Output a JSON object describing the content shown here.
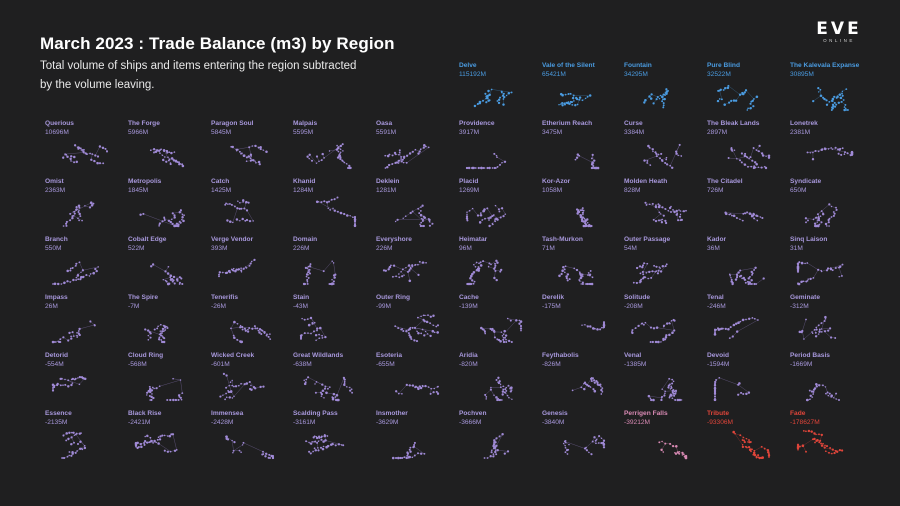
{
  "header": {
    "title": "March 2023 : Trade Balance (m3) by Region",
    "subtitle": "Total volume of ships and items entering the region subtracted by the volume leaving."
  },
  "logo": {
    "main": "EVE",
    "sub": "ONLINE"
  },
  "colors": {
    "background": "#1f1f20",
    "positive_high": "#4a9be0",
    "neutral": "#a08ad6",
    "negative_mid": "#d98ab4",
    "negative_high": "#e0453a",
    "label_neutral": "#a898dc"
  },
  "chart_data": {
    "type": "small-multiples",
    "title": "March 2023 : Trade Balance (m3) by Region",
    "unit": "m3",
    "regions": [
      {
        "name": "Delve",
        "label": "115192M",
        "value": 115192
      },
      {
        "name": "Vale of the Silent",
        "label": "65421M",
        "value": 65421
      },
      {
        "name": "Fountain",
        "label": "34295M",
        "value": 34295
      },
      {
        "name": "Pure Blind",
        "label": "32522M",
        "value": 32522
      },
      {
        "name": "The Kalevala Expanse",
        "label": "30895M",
        "value": 30895
      },
      {
        "name": "Querious",
        "label": "10696M",
        "value": 10696
      },
      {
        "name": "The Forge",
        "label": "5966M",
        "value": 5966
      },
      {
        "name": "Paragon Soul",
        "label": "5845M",
        "value": 5845
      },
      {
        "name": "Malpais",
        "label": "5595M",
        "value": 5595
      },
      {
        "name": "Oasa",
        "label": "5591M",
        "value": 5591
      },
      {
        "name": "Providence",
        "label": "3917M",
        "value": 3917
      },
      {
        "name": "Etherium Reach",
        "label": "3475M",
        "value": 3475
      },
      {
        "name": "Curse",
        "label": "3384M",
        "value": 3384
      },
      {
        "name": "The Bleak Lands",
        "label": "2897M",
        "value": 2897
      },
      {
        "name": "Lonetrek",
        "label": "2381M",
        "value": 2381
      },
      {
        "name": "Omist",
        "label": "2363M",
        "value": 2363
      },
      {
        "name": "Metropolis",
        "label": "1845M",
        "value": 1845
      },
      {
        "name": "Catch",
        "label": "1425M",
        "value": 1425
      },
      {
        "name": "Khanid",
        "label": "1284M",
        "value": 1284
      },
      {
        "name": "Deklein",
        "label": "1281M",
        "value": 1281
      },
      {
        "name": "Placid",
        "label": "1269M",
        "value": 1269
      },
      {
        "name": "Kor-Azor",
        "label": "1058M",
        "value": 1058
      },
      {
        "name": "Molden Heath",
        "label": "828M",
        "value": 828
      },
      {
        "name": "The Citadel",
        "label": "726M",
        "value": 726
      },
      {
        "name": "Syndicate",
        "label": "650M",
        "value": 650
      },
      {
        "name": "Branch",
        "label": "550M",
        "value": 550
      },
      {
        "name": "Cobalt Edge",
        "label": "522M",
        "value": 522
      },
      {
        "name": "Verge Vendor",
        "label": "393M",
        "value": 393
      },
      {
        "name": "Domain",
        "label": "226M",
        "value": 226
      },
      {
        "name": "Everyshore",
        "label": "226M",
        "value": 226
      },
      {
        "name": "Heimatar",
        "label": "96M",
        "value": 96
      },
      {
        "name": "Tash-Murkon",
        "label": "71M",
        "value": 71
      },
      {
        "name": "Outer Passage",
        "label": "54M",
        "value": 54
      },
      {
        "name": "Kador",
        "label": "36M",
        "value": 36
      },
      {
        "name": "Sinq Laison",
        "label": "31M",
        "value": 31
      },
      {
        "name": "Impass",
        "label": "26M",
        "value": 26
      },
      {
        "name": "The Spire",
        "label": "-7M",
        "value": -7
      },
      {
        "name": "Tenerifis",
        "label": "-26M",
        "value": -26
      },
      {
        "name": "Stain",
        "label": "-43M",
        "value": -43
      },
      {
        "name": "Outer Ring",
        "label": "-99M",
        "value": -99
      },
      {
        "name": "Cache",
        "label": "-139M",
        "value": -139
      },
      {
        "name": "Derelik",
        "label": "-175M",
        "value": -175
      },
      {
        "name": "Solitude",
        "label": "-208M",
        "value": -208
      },
      {
        "name": "Tenal",
        "label": "-246M",
        "value": -246
      },
      {
        "name": "Geminate",
        "label": "-312M",
        "value": -312
      },
      {
        "name": "Detorid",
        "label": "-554M",
        "value": -554
      },
      {
        "name": "Cloud Ring",
        "label": "-568M",
        "value": -568
      },
      {
        "name": "Wicked Creek",
        "label": "-601M",
        "value": -601
      },
      {
        "name": "Great Wildlands",
        "label": "-638M",
        "value": -638
      },
      {
        "name": "Esoteria",
        "label": "-655M",
        "value": -655
      },
      {
        "name": "Aridia",
        "label": "-820M",
        "value": -820
      },
      {
        "name": "Feythabolis",
        "label": "-826M",
        "value": -826
      },
      {
        "name": "Venal",
        "label": "-1385M",
        "value": -1385
      },
      {
        "name": "Devoid",
        "label": "-1594M",
        "value": -1594
      },
      {
        "name": "Period Basis",
        "label": "-1669M",
        "value": -1669
      },
      {
        "name": "Essence",
        "label": "-2135M",
        "value": -2135
      },
      {
        "name": "Black Rise",
        "label": "-2421M",
        "value": -2421
      },
      {
        "name": "Immensea",
        "label": "-2428M",
        "value": -2428
      },
      {
        "name": "Scalding Pass",
        "label": "-3161M",
        "value": -3161
      },
      {
        "name": "Insmother",
        "label": "-3629M",
        "value": -3629
      },
      {
        "name": "Pochven",
        "label": "-3666M",
        "value": -3666
      },
      {
        "name": "Genesis",
        "label": "-3840M",
        "value": -3840
      },
      {
        "name": "Perrigen Falls",
        "label": "-39212M",
        "value": -39212
      },
      {
        "name": "Tribute",
        "label": "-93306M",
        "value": -93306
      },
      {
        "name": "Fade",
        "label": "-178627M",
        "value": -178627
      }
    ]
  }
}
